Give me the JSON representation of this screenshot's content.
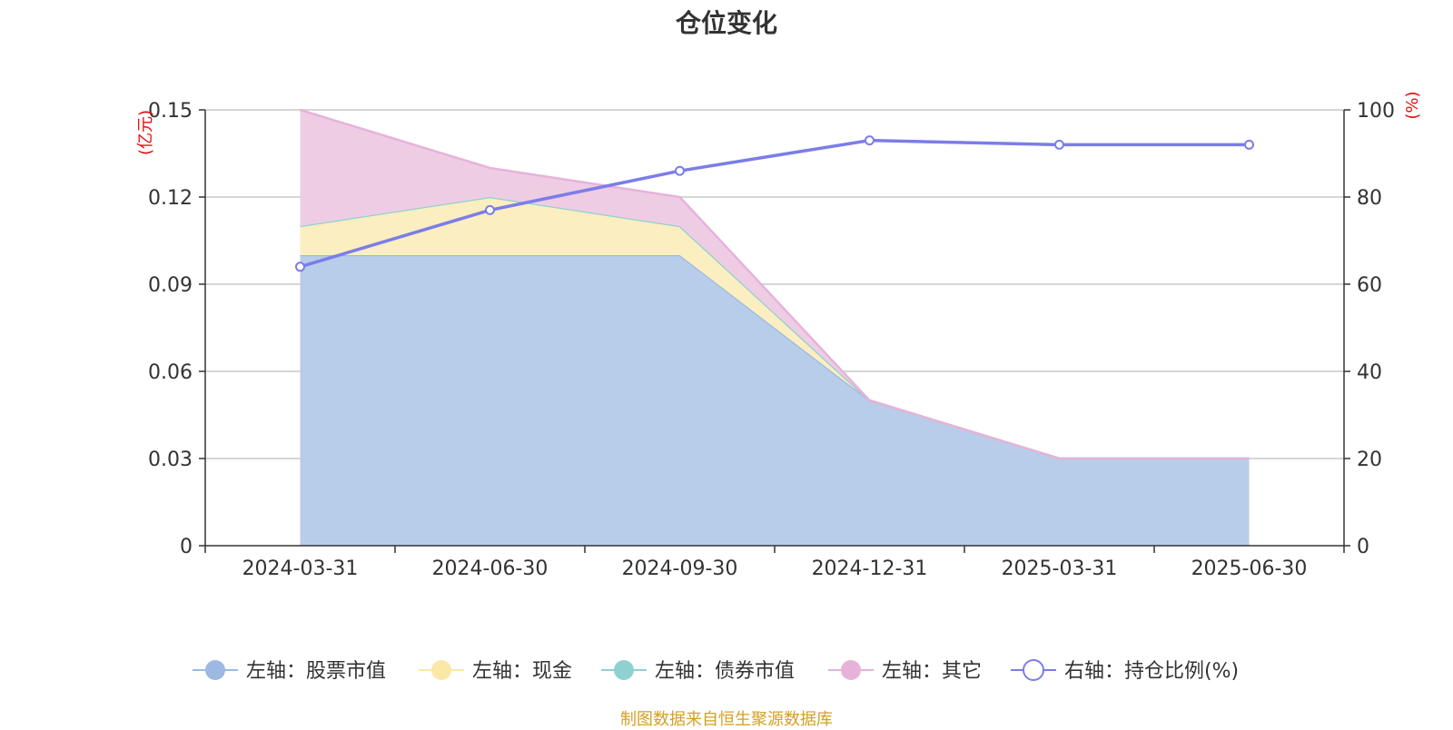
{
  "chart_data": {
    "type": "area",
    "title": "仓位变化",
    "categories": [
      "2024-03-31",
      "2024-06-30",
      "2024-09-30",
      "2024-12-31",
      "2025-03-31",
      "2025-06-30"
    ],
    "left_axis": {
      "unit": "(亿元)",
      "ylim": [
        0,
        0.15
      ],
      "ticks": [
        "0",
        "0.03",
        "0.06",
        "0.09",
        "0.12",
        "0.15"
      ]
    },
    "right_axis": {
      "unit": "(%)",
      "ylim": [
        0,
        100
      ],
      "ticks": [
        "0",
        "20",
        "40",
        "60",
        "80",
        "100"
      ]
    },
    "grid": true,
    "legend_position": "bottom",
    "series": [
      {
        "name": "左轴：股票市值",
        "axis": "left",
        "kind": "stacked-area",
        "color": "#9db8e2",
        "fill": "#b8cdea",
        "values": [
          0.1,
          0.1,
          0.1,
          0.05,
          0.03,
          0.03
        ]
      },
      {
        "name": "左轴：现金",
        "axis": "left",
        "kind": "stacked-area",
        "color": "#fbe8a8",
        "fill": "#fbeec0",
        "values": [
          0.01,
          0.02,
          0.01,
          0.0,
          0.0,
          0.0
        ]
      },
      {
        "name": "左轴：债券市值",
        "axis": "left",
        "kind": "stacked-area",
        "color": "#8fd1d0",
        "fill": "#a8dcdc",
        "values": [
          0,
          0,
          0,
          0,
          0,
          0
        ]
      },
      {
        "name": "左轴：其它",
        "axis": "left",
        "kind": "stacked-area",
        "color": "#e6b2da",
        "fill": "#eecde4",
        "values": [
          0.04,
          0.01,
          0.01,
          0.0,
          0.0,
          0.0
        ]
      },
      {
        "name": "右轴：持仓比例(%)",
        "axis": "right",
        "kind": "line",
        "color": "#7b7de8",
        "fill": "#ffffff",
        "values": [
          64,
          77,
          86,
          93,
          92,
          92
        ]
      }
    ]
  },
  "footer": {
    "source": "制图数据来自恒生聚源数据库"
  }
}
